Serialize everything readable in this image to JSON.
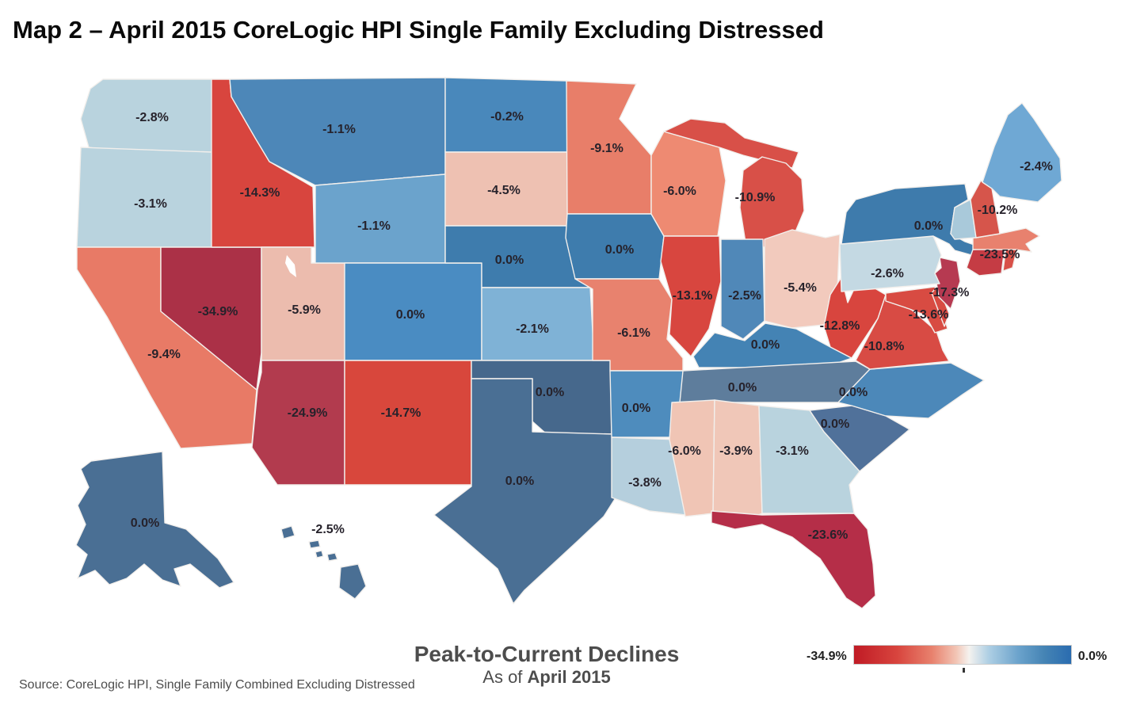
{
  "title": "Map 2 – April 2015 CoreLogic HPI Single Family Excluding Distressed",
  "footer": {
    "source": "Source: CoreLogic HPI, Single Family Combined Excluding Distressed",
    "caption_title": "Peak-to-Current Declines",
    "caption_prefix": "As of ",
    "caption_date": "April 2015"
  },
  "legend": {
    "min_label": "-34.9%",
    "max_label": "0.0%",
    "gradient_stops": [
      "#c01b25 0%",
      "#d8453e 20%",
      "#e8826e 36%",
      "#f2c4b4 47%",
      "#f5f2ef 53%",
      "#aecfe4 62%",
      "#6aa2cb 76%",
      "#4483b4 88%",
      "#2a6cb0 100%"
    ]
  },
  "chart_data": {
    "type": "choropleth",
    "region": "United States (states)",
    "metric": "Peak-to-Current Decline, CoreLogic HPI Single Family Excluding Distressed (%)",
    "as_of": "April 2015",
    "value_range": [
      -34.9,
      0.0
    ],
    "states": [
      {
        "id": "wa",
        "name": "Washington",
        "label": "-2.8%",
        "value": -2.8,
        "color": "#b9d3de"
      },
      {
        "id": "or",
        "name": "Oregon",
        "label": "-3.1%",
        "value": -3.1,
        "color": "#b9d3de"
      },
      {
        "id": "ca",
        "name": "California",
        "label": "-9.4%",
        "value": -9.4,
        "color": "#e87a66"
      },
      {
        "id": "nv",
        "name": "Nevada",
        "label": "-34.9%",
        "value": -34.9,
        "color": "#ab3147"
      },
      {
        "id": "id",
        "name": "Idaho",
        "label": "-14.3%",
        "value": -14.3,
        "color": "#d8453e"
      },
      {
        "id": "ut",
        "name": "Utah",
        "label": "-5.9%",
        "value": -5.9,
        "color": "#ecbcae"
      },
      {
        "id": "az",
        "name": "Arizona",
        "label": "-24.9%",
        "value": -24.9,
        "color": "#b23b4e"
      },
      {
        "id": "mt",
        "name": "Montana",
        "label": "-1.1%",
        "value": -1.1,
        "color": "#4d87b8"
      },
      {
        "id": "wy",
        "name": "Wyoming",
        "label": "-1.1%",
        "value": -1.1,
        "color": "#6ba3cc"
      },
      {
        "id": "co",
        "name": "Colorado",
        "label": "0.0%",
        "value": 0.0,
        "color": "#4a8cc2"
      },
      {
        "id": "nm",
        "name": "New Mexico",
        "label": "-14.7%",
        "value": -14.7,
        "color": "#d8473c"
      },
      {
        "id": "nd",
        "name": "North Dakota",
        "label": "-0.2%",
        "value": -0.2,
        "color": "#4988bb"
      },
      {
        "id": "sd",
        "name": "South Dakota",
        "label": "-4.5%",
        "value": -4.5,
        "color": "#eec1b2"
      },
      {
        "id": "ne",
        "name": "Nebraska",
        "label": "0.0%",
        "value": 0.0,
        "color": "#3e7cad"
      },
      {
        "id": "ks",
        "name": "Kansas",
        "label": "-2.1%",
        "value": -2.1,
        "color": "#7fb2d6"
      },
      {
        "id": "ok",
        "name": "Oklahoma",
        "label": "0.0%",
        "value": 0.0,
        "color": "#46688c"
      },
      {
        "id": "tx",
        "name": "Texas",
        "label": "0.0%",
        "value": 0.0,
        "color": "#4a6f94"
      },
      {
        "id": "mn",
        "name": "Minnesota",
        "label": "-9.1%",
        "value": -9.1,
        "color": "#e87e69"
      },
      {
        "id": "ia",
        "name": "Iowa",
        "label": "0.0%",
        "value": 0.0,
        "color": "#3e7cad"
      },
      {
        "id": "mo",
        "name": "Missouri",
        "label": "-6.1%",
        "value": -6.1,
        "color": "#e8826e"
      },
      {
        "id": "ar",
        "name": "Arkansas",
        "label": "0.0%",
        "value": 0.0,
        "color": "#4e8cbd"
      },
      {
        "id": "la",
        "name": "Louisiana",
        "label": "-3.8%",
        "value": -3.8,
        "color": "#b5cfdd"
      },
      {
        "id": "wi",
        "name": "Wisconsin",
        "label": "-6.0%",
        "value": -6.0,
        "color": "#ee8a72"
      },
      {
        "id": "il",
        "name": "Illinois",
        "label": "-13.1%",
        "value": -13.1,
        "color": "#d8463f"
      },
      {
        "id": "mi",
        "name": "Michigan",
        "label": "-10.9%",
        "value": -10.9,
        "color": "#d85048"
      },
      {
        "id": "in",
        "name": "Indiana",
        "label": "-2.5%",
        "value": -2.5,
        "color": "#5088b8"
      },
      {
        "id": "oh",
        "name": "Ohio",
        "label": "-5.4%",
        "value": -5.4,
        "color": "#f2cabd"
      },
      {
        "id": "ky",
        "name": "Kentucky",
        "label": "0.0%",
        "value": 0.0,
        "color": "#4483b4"
      },
      {
        "id": "tn",
        "name": "Tennessee",
        "label": "0.0%",
        "value": 0.0,
        "color": "#5e7d9c"
      },
      {
        "id": "ms",
        "name": "Mississippi",
        "label": "-6.0%",
        "value": -6.0,
        "color": "#f0c5b5"
      },
      {
        "id": "al",
        "name": "Alabama",
        "label": "-3.9%",
        "value": -3.9,
        "color": "#f0c7b8"
      },
      {
        "id": "ga",
        "name": "Georgia",
        "label": "-3.1%",
        "value": -3.1,
        "color": "#b9d3de"
      },
      {
        "id": "fl",
        "name": "Florida",
        "label": "-23.6%",
        "value": -23.6,
        "color": "#b52e48"
      },
      {
        "id": "sc",
        "name": "South Carolina",
        "label": "0.0%",
        "value": 0.0,
        "color": "#50719a"
      },
      {
        "id": "nc",
        "name": "North Carolina",
        "label": "0.0%",
        "value": 0.0,
        "color": "#4c88b9"
      },
      {
        "id": "va",
        "name": "Virginia",
        "label": "-10.8%",
        "value": -10.8,
        "color": "#d84b44"
      },
      {
        "id": "wv",
        "name": "West Virginia",
        "label": "-12.8%",
        "value": -12.8,
        "color": "#d8453e"
      },
      {
        "id": "md",
        "name": "Maryland",
        "label": "-13.6%",
        "value": -13.6,
        "color": "#d84b42"
      },
      {
        "id": "de",
        "name": "Delaware",
        "label": "",
        "value": null,
        "color": "#d84b42"
      },
      {
        "id": "nj",
        "name": "New Jersey",
        "label": "-17.3%",
        "value": -17.3,
        "color": "#b63a51"
      },
      {
        "id": "pa",
        "name": "Pennsylvania",
        "label": "-2.6%",
        "value": -2.6,
        "color": "#c4d9e3"
      },
      {
        "id": "ny",
        "name": "New York",
        "label": "0.0%",
        "value": 0.0,
        "color": "#3e7bac"
      },
      {
        "id": "ct",
        "name": "Connecticut",
        "label": "-23.5%",
        "value": -23.5,
        "color": "#c53c44"
      },
      {
        "id": "ri",
        "name": "Rhode Island",
        "label": "",
        "value": null,
        "color": "#d85048"
      },
      {
        "id": "ma",
        "name": "Massachusetts",
        "label": "",
        "value": null,
        "color": "#e8816e"
      },
      {
        "id": "vt",
        "name": "Vermont",
        "label": "",
        "value": null,
        "color": "#a9c9da"
      },
      {
        "id": "nh",
        "name": "New Hampshire",
        "label": "-10.2%",
        "value": -10.2,
        "color": "#d6554b"
      },
      {
        "id": "me",
        "name": "Maine",
        "label": "-2.4%",
        "value": -2.4,
        "color": "#6fa8d4"
      },
      {
        "id": "ak",
        "name": "Alaska",
        "label": "0.0%",
        "value": 0.0,
        "color": "#4a6f94"
      },
      {
        "id": "hi",
        "name": "Hawaii",
        "label": "-2.5%",
        "value": -2.5,
        "color": "#4a6f94"
      }
    ]
  }
}
